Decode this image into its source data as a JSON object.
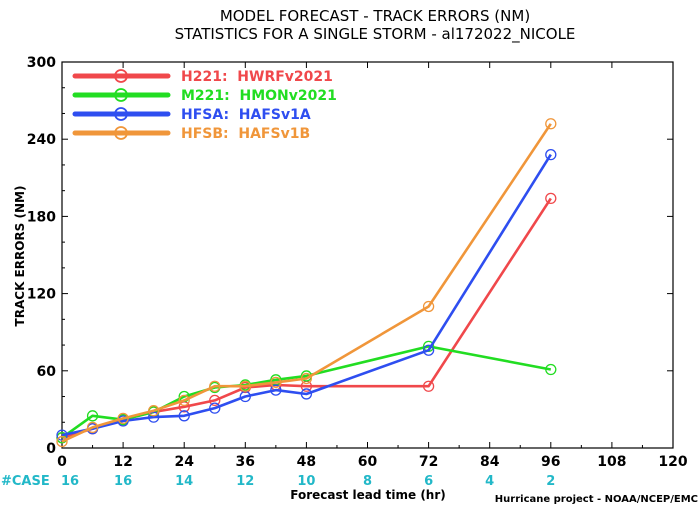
{
  "titles": {
    "line1": "MODEL FORECAST - TRACK ERRORS (NM)",
    "line2": "STATISTICS FOR A SINGLE STORM - al172022_NICOLE"
  },
  "credit": "Hurricane project - NOAA/NCEP/EMC",
  "case_label": "#CASE",
  "chart_data": {
    "type": "line",
    "title": "MODEL FORECAST - TRACK ERRORS (NM)",
    "subtitle": "STATISTICS FOR A SINGLE STORM - al172022_NICOLE",
    "xlabel": "Forecast lead time (hr)",
    "ylabel": "TRACK ERRORS (NM)",
    "xlim": [
      0,
      120
    ],
    "ylim": [
      0,
      300
    ],
    "x_ticks": [
      "0",
      "12",
      "24",
      "36",
      "48",
      "60",
      "72",
      "84",
      "96",
      "108",
      "120"
    ],
    "y_ticks": [
      "0",
      "60",
      "120",
      "180",
      "240",
      "300"
    ],
    "grid": false,
    "legend_position": "top-left",
    "series": [
      {
        "name": "H221:  HWRFv2021",
        "color": "#f0484b",
        "x": [
          0,
          6,
          12,
          18,
          24,
          30,
          36,
          42,
          48,
          72,
          96
        ],
        "y": [
          8,
          15,
          22,
          28,
          32,
          37,
          47,
          49,
          48,
          48,
          194
        ]
      },
      {
        "name": "M221:  HMONv2021",
        "color": "#22dd22",
        "x": [
          0,
          6,
          12,
          18,
          24,
          30,
          36,
          42,
          48,
          72,
          96
        ],
        "y": [
          8,
          25,
          22,
          28,
          40,
          47,
          49,
          53,
          56,
          79,
          61
        ]
      },
      {
        "name": "HFSA:  HAFSv1A",
        "color": "#2e4ef0",
        "x": [
          0,
          6,
          12,
          18,
          24,
          30,
          36,
          42,
          48,
          72,
          96
        ],
        "y": [
          10,
          15,
          21,
          24,
          25,
          31,
          40,
          45,
          42,
          76,
          228
        ]
      },
      {
        "name": "HFSB:  HAFSv1B",
        "color": "#f0963a",
        "x": [
          0,
          6,
          12,
          18,
          24,
          30,
          36,
          42,
          48,
          72,
          96
        ],
        "y": [
          5,
          16,
          23,
          29,
          37,
          48,
          48,
          51,
          54,
          110,
          252
        ]
      }
    ],
    "cases": {
      "x": [
        0,
        12,
        24,
        36,
        48,
        60,
        72,
        84,
        96
      ],
      "values": [
        "16",
        "16",
        "14",
        "12",
        "10",
        "8",
        "6",
        "4",
        "2"
      ]
    }
  }
}
